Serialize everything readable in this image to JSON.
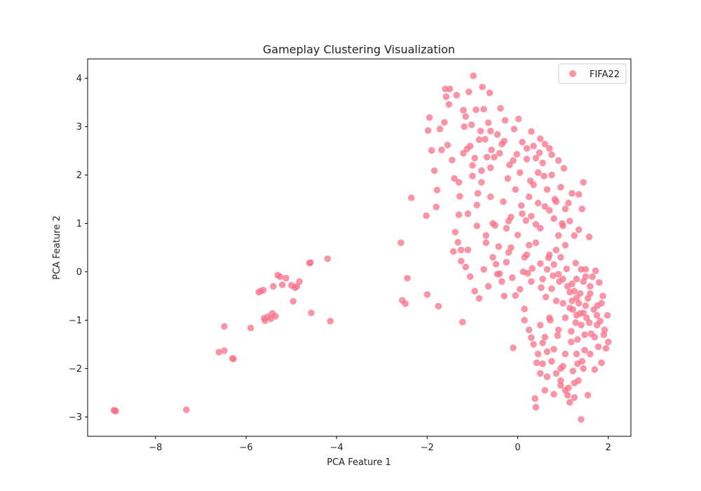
{
  "chart_data": {
    "type": "scatter",
    "title": "Gameplay Clustering Visualization",
    "xlabel": "PCA Feature 1",
    "ylabel": "PCA Feature 2",
    "xlim": [
      -9.5,
      2.5
    ],
    "ylim": [
      -3.4,
      4.4
    ],
    "x_ticks": [
      -8,
      -6,
      -4,
      -2,
      0,
      2
    ],
    "y_ticks": [
      -3,
      -2,
      -1,
      0,
      1,
      2,
      3,
      4
    ],
    "x_tick_labels": [
      "−8",
      "−6",
      "−4",
      "−2",
      "0",
      "2"
    ],
    "y_tick_labels": [
      "−3",
      "−2",
      "−1",
      "0",
      "1",
      "2",
      "3",
      "4"
    ],
    "grid": false,
    "legend_position": "top-right",
    "series": [
      {
        "name": "FIFA22",
        "color": "#f77189",
        "opacity": 0.75,
        "points": [
          [
            -8.9,
            -2.87
          ],
          [
            -8.88,
            -2.88
          ],
          [
            -8.92,
            -2.86
          ],
          [
            -7.32,
            -2.85
          ],
          [
            -6.6,
            -1.66
          ],
          [
            -6.48,
            -1.63
          ],
          [
            -6.3,
            -1.79
          ],
          [
            -6.28,
            -1.8
          ],
          [
            -6.48,
            -1.13
          ],
          [
            -5.9,
            -1.16
          ],
          [
            -5.72,
            -0.42
          ],
          [
            -5.68,
            -0.4
          ],
          [
            -5.6,
            -0.96
          ],
          [
            -5.58,
            -1.01
          ],
          [
            -5.52,
            -0.93
          ],
          [
            -5.45,
            -0.97
          ],
          [
            -5.42,
            -0.86
          ],
          [
            -5.35,
            -0.92
          ],
          [
            -5.4,
            -0.3
          ],
          [
            -5.3,
            -0.07
          ],
          [
            -5.25,
            -0.1
          ],
          [
            -5.2,
            -0.27
          ],
          [
            -5.12,
            -0.13
          ],
          [
            -5.0,
            -0.28
          ],
          [
            -4.96,
            -0.61
          ],
          [
            -4.92,
            -0.33
          ],
          [
            -4.88,
            -0.3
          ],
          [
            -4.82,
            -0.2
          ],
          [
            -4.6,
            0.18
          ],
          [
            -4.58,
            0.19
          ],
          [
            -4.56,
            -0.85
          ],
          [
            -4.2,
            0.27
          ],
          [
            -4.14,
            -1.02
          ],
          [
            -5.62,
            -0.38
          ],
          [
            -2.58,
            0.6
          ],
          [
            -2.55,
            -0.59
          ],
          [
            -2.48,
            -0.66
          ],
          [
            -2.44,
            -0.13
          ],
          [
            -2.35,
            1.53
          ],
          [
            -2.02,
            1.16
          ],
          [
            -2.0,
            -0.47
          ],
          [
            -1.98,
            2.92
          ],
          [
            -1.95,
            3.19
          ],
          [
            -1.9,
            2.51
          ],
          [
            -1.84,
            2.09
          ],
          [
            -1.8,
            1.34
          ],
          [
            -1.78,
            1.69
          ],
          [
            -1.75,
            -0.71
          ],
          [
            -1.72,
            2.95
          ],
          [
            -1.68,
            2.52
          ],
          [
            -1.62,
            3.09
          ],
          [
            -1.6,
            3.78
          ],
          [
            -1.58,
            3.62
          ],
          [
            -1.55,
            2.62
          ],
          [
            -1.52,
            3.46
          ],
          [
            -1.5,
            3.78
          ],
          [
            -1.45,
            2.31
          ],
          [
            -1.42,
            0.42
          ],
          [
            -1.4,
            1.93
          ],
          [
            -1.38,
            0.82
          ],
          [
            -1.35,
            3.65
          ],
          [
            -1.32,
            0.61
          ],
          [
            -1.3,
            1.18
          ],
          [
            -1.28,
            1.56
          ],
          [
            -1.25,
            0.22
          ],
          [
            -1.22,
            -1.04
          ],
          [
            -1.2,
            3.34
          ],
          [
            -1.18,
            3.0
          ],
          [
            -1.15,
            3.21
          ],
          [
            -1.12,
            2.54
          ],
          [
            -1.1,
            0.45
          ],
          [
            -1.08,
            3.72
          ],
          [
            -1.05,
            2.6
          ],
          [
            -1.02,
            3.04
          ],
          [
            -1.0,
            1.98
          ],
          [
            -0.98,
            4.05
          ],
          [
            -0.95,
            2.35
          ],
          [
            -0.92,
            3.35
          ],
          [
            -0.9,
            1.38
          ],
          [
            -0.88,
            1.62
          ],
          [
            -0.85,
            2.73
          ],
          [
            -0.82,
            2.91
          ],
          [
            -0.8,
            2.09
          ],
          [
            -0.78,
            3.82
          ],
          [
            -0.75,
            3.36
          ],
          [
            -0.72,
            2.74
          ],
          [
            -0.7,
            0.6
          ],
          [
            -0.68,
            2.37
          ],
          [
            -0.65,
            3.08
          ],
          [
            -0.62,
            3.7
          ],
          [
            -0.6,
            2.91
          ],
          [
            -0.58,
            2.52
          ],
          [
            -0.55,
            1.0
          ],
          [
            -0.52,
            2.37
          ],
          [
            -0.5,
            0.96
          ],
          [
            -0.48,
            0.16
          ],
          [
            -0.45,
            2.84
          ],
          [
            -0.42,
            0.52
          ],
          [
            -0.4,
            -0.04
          ],
          [
            -0.38,
            3.38
          ],
          [
            -0.35,
            2.64
          ],
          [
            -0.32,
            1.45
          ],
          [
            -0.3,
            -0.5
          ],
          [
            -0.28,
            3.13
          ],
          [
            -0.25,
            0.9
          ],
          [
            -0.22,
            1.93
          ],
          [
            -0.2,
            0.4
          ],
          [
            -0.18,
            2.21
          ],
          [
            -0.15,
            1.13
          ],
          [
            -0.12,
            -0.12
          ],
          [
            -0.1,
            -1.57
          ],
          [
            -0.08,
            2.95
          ],
          [
            -0.05,
            -0.49
          ],
          [
            -0.02,
            2.43
          ],
          [
            0.0,
            0.76
          ],
          [
            0.02,
            3.16
          ],
          [
            0.05,
            -0.36
          ],
          [
            0.08,
            1.37
          ],
          [
            0.1,
            2.68
          ],
          [
            0.12,
            -0.0
          ],
          [
            0.15,
            -0.77
          ],
          [
            0.18,
            1.06
          ],
          [
            0.2,
            2.33
          ],
          [
            0.22,
            -0.03
          ],
          [
            0.25,
            0.55
          ],
          [
            0.28,
            1.88
          ],
          [
            0.3,
            -1.36
          ],
          [
            0.32,
            0.07
          ],
          [
            0.35,
            2.6
          ],
          [
            0.38,
            -2.62
          ],
          [
            0.4,
            0.98
          ],
          [
            0.42,
            -1.88
          ],
          [
            0.45,
            1.42
          ],
          [
            0.48,
            2.46
          ],
          [
            0.5,
            0.17
          ],
          [
            0.52,
            -0.33
          ],
          [
            0.55,
            -1.47
          ],
          [
            0.58,
            1.98
          ],
          [
            0.6,
            2.64
          ],
          [
            0.62,
            -0.52
          ],
          [
            0.65,
            -2.17
          ],
          [
            0.68,
            0.29
          ],
          [
            0.7,
            1.27
          ],
          [
            0.72,
            -1.0
          ],
          [
            0.75,
            2.42
          ],
          [
            0.78,
            -0.08
          ],
          [
            0.8,
            -2.53
          ],
          [
            0.82,
            1.5
          ],
          [
            0.85,
            0.45
          ],
          [
            0.88,
            -1.32
          ],
          [
            0.9,
            2.3
          ],
          [
            0.92,
            -0.2
          ],
          [
            0.95,
            -2.0
          ],
          [
            0.98,
            1.0
          ],
          [
            1.0,
            -0.65
          ],
          [
            1.02,
            2.14
          ],
          [
            1.05,
            -1.7
          ],
          [
            1.08,
            0.06
          ],
          [
            1.1,
            -2.55
          ],
          [
            1.12,
            1.42
          ],
          [
            1.15,
            -0.42
          ],
          [
            1.18,
            -1.23
          ],
          [
            1.2,
            1.62
          ],
          [
            1.22,
            -0.78
          ],
          [
            1.25,
            -2.3
          ],
          [
            1.28,
            0.18
          ],
          [
            1.3,
            -0.54
          ],
          [
            1.32,
            -1.9
          ],
          [
            1.35,
            0.87
          ],
          [
            1.38,
            -0.86
          ],
          [
            1.4,
            -3.05
          ],
          [
            1.42,
            1.3
          ],
          [
            1.45,
            -0.2
          ],
          [
            1.48,
            -1.62
          ],
          [
            1.5,
            0.05
          ],
          [
            1.52,
            -0.95
          ],
          [
            1.55,
            -2.55
          ],
          [
            1.58,
            0.72
          ],
          [
            1.6,
            -0.45
          ],
          [
            1.62,
            -1.28
          ],
          [
            1.65,
            -0.1
          ],
          [
            1.68,
            -0.78
          ],
          [
            1.7,
            -2.02
          ],
          [
            1.72,
            0.02
          ],
          [
            1.75,
            -0.9
          ],
          [
            1.78,
            -1.55
          ],
          [
            1.8,
            -0.22
          ],
          [
            1.82,
            -1.02
          ],
          [
            1.85,
            -1.88
          ],
          [
            1.88,
            -0.5
          ],
          [
            1.92,
            -1.2
          ],
          [
            1.95,
            -1.58
          ],
          [
            1.98,
            -0.9
          ],
          [
            2.0,
            -1.45
          ],
          [
            1.9,
            -1.3
          ],
          [
            1.76,
            -0.7
          ],
          [
            1.1,
            -0.3
          ],
          [
            1.2,
            -0.6
          ],
          [
            1.3,
            -0.9
          ],
          [
            1.4,
            -1.1
          ],
          [
            1.5,
            -0.7
          ],
          [
            1.25,
            -0.4
          ],
          [
            1.35,
            -0.65
          ],
          [
            1.45,
            -0.85
          ],
          [
            1.55,
            -0.55
          ],
          [
            1.15,
            -0.75
          ],
          [
            1.05,
            -0.95
          ],
          [
            1.28,
            -1.05
          ],
          [
            1.38,
            -0.45
          ],
          [
            1.48,
            -1.3
          ],
          [
            1.58,
            -1.05
          ],
          [
            1.18,
            -1.45
          ],
          [
            1.3,
            -1.7
          ],
          [
            1.42,
            -1.85
          ],
          [
            1.22,
            -2.05
          ],
          [
            1.34,
            -2.25
          ],
          [
            1.12,
            -2.4
          ],
          [
            1.25,
            -2.6
          ],
          [
            0.95,
            -2.35
          ],
          [
            1.0,
            -1.95
          ],
          [
            0.8,
            -1.6
          ],
          [
            0.9,
            -1.2
          ],
          [
            0.7,
            -0.95
          ],
          [
            0.6,
            -1.35
          ],
          [
            0.5,
            -1.1
          ],
          [
            0.85,
            -0.6
          ],
          [
            0.75,
            -0.35
          ],
          [
            0.65,
            0.05
          ],
          [
            0.55,
            -0.15
          ],
          [
            0.95,
            0.3
          ],
          [
            1.05,
            0.55
          ],
          [
            0.9,
            0.75
          ],
          [
            0.3,
            -0.2
          ],
          [
            0.2,
            0.35
          ],
          [
            0.4,
            0.6
          ],
          [
            0.1,
            1.2
          ],
          [
            0.25,
            1.55
          ],
          [
            0.35,
            1.8
          ],
          [
            0.45,
            2.05
          ],
          [
            0.55,
            2.25
          ],
          [
            0.65,
            1.7
          ],
          [
            0.75,
            2.0
          ],
          [
            0.85,
            1.45
          ],
          [
            0.95,
            1.75
          ],
          [
            1.05,
            1.3
          ],
          [
            1.15,
            1.05
          ],
          [
            1.25,
            0.75
          ],
          [
            1.35,
            1.6
          ],
          [
            1.45,
            1.85
          ],
          [
            0.05,
            2.05
          ],
          [
            -0.05,
            1.7
          ],
          [
            -0.15,
            0.5
          ],
          [
            -0.25,
            0.2
          ],
          [
            -0.35,
            -0.2
          ],
          [
            -0.45,
            -0.05
          ],
          [
            -0.55,
            0.3
          ],
          [
            -0.65,
            -0.3
          ],
          [
            -0.75,
            0.05
          ],
          [
            -0.85,
            -0.55
          ],
          [
            -0.95,
            -0.4
          ],
          [
            -1.05,
            -0.1
          ],
          [
            -1.15,
            0.1
          ],
          [
            0.15,
            -1.0
          ],
          [
            0.25,
            -1.2
          ],
          [
            0.35,
            -1.5
          ],
          [
            0.45,
            -1.7
          ],
          [
            0.55,
            -1.9
          ],
          [
            0.65,
            -1.65
          ],
          [
            0.75,
            -1.85
          ],
          [
            0.85,
            -2.1
          ],
          [
            0.95,
            -2.25
          ],
          [
            1.05,
            -2.45
          ],
          [
            1.15,
            -2.7
          ],
          [
            0.6,
            -2.45
          ],
          [
            0.5,
            -2.1
          ],
          [
            0.4,
            -2.8
          ],
          [
            1.32,
            -1.4
          ],
          [
            1.45,
            -2.0
          ],
          [
            1.6,
            -1.7
          ],
          [
            1.7,
            -1.35
          ],
          [
            1.75,
            -1.1
          ],
          [
            1.85,
            -0.65
          ],
          [
            1.6,
            -0.3
          ],
          [
            1.5,
            -0.1
          ],
          [
            1.4,
            0.05
          ],
          [
            1.3,
            -0.15
          ],
          [
            1.2,
            -0.25
          ],
          [
            1.0,
            -0.15
          ],
          [
            0.9,
            -0.05
          ],
          [
            0.8,
            0.15
          ],
          [
            0.7,
            0.35
          ],
          [
            -0.3,
            2.7
          ],
          [
            -0.4,
            2.45
          ],
          [
            -0.6,
            2.15
          ],
          [
            -0.8,
            1.85
          ],
          [
            -1.0,
            2.2
          ],
          [
            -1.2,
            2.45
          ],
          [
            -1.3,
            1.85
          ],
          [
            0.3,
            2.9
          ],
          [
            0.5,
            2.75
          ],
          [
            0.7,
            2.55
          ],
          [
            0.2,
            2.55
          ],
          [
            -0.1,
            2.3
          ],
          [
            0.4,
            2.35
          ],
          [
            0.6,
            1.35
          ],
          [
            0.8,
            1.1
          ],
          [
            1.0,
            0.95
          ],
          [
            0.3,
            1.15
          ],
          [
            0.5,
            0.9
          ],
          [
            -0.2,
            1.05
          ],
          [
            -0.6,
            1.55
          ],
          [
            -0.9,
            0.95
          ],
          [
            -1.1,
            1.2
          ],
          [
            -1.25,
            0.45
          ],
          [
            -0.7,
            0.75
          ],
          [
            0.15,
            0.3
          ]
        ]
      }
    ]
  }
}
